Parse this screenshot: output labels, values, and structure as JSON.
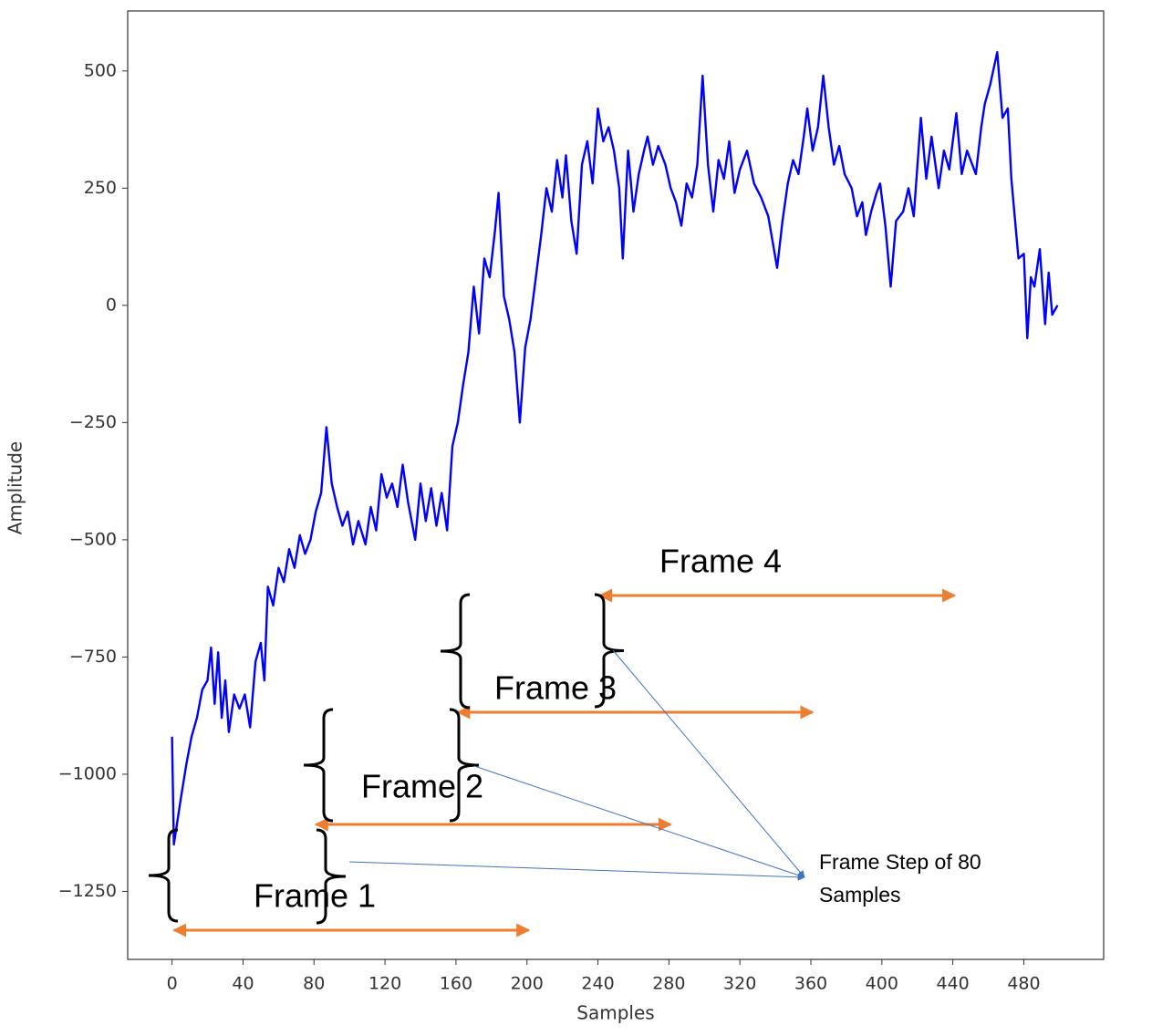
{
  "chart_data": {
    "type": "line",
    "x_label": "Samples",
    "y_label": "Amplitude",
    "x": [
      0,
      1,
      3,
      5,
      8,
      11,
      14,
      17,
      20,
      22,
      24,
      26,
      28,
      30,
      32,
      35,
      38,
      41,
      44,
      47,
      50,
      52,
      54,
      57,
      60,
      63,
      66,
      69,
      72,
      75,
      78,
      81,
      84,
      87,
      90,
      93,
      96,
      99,
      102,
      105,
      109,
      112,
      115,
      118,
      121,
      124,
      127,
      130,
      133,
      137,
      140,
      143,
      146,
      149,
      152,
      155,
      158,
      161,
      164,
      167,
      170,
      173,
      176,
      179,
      182,
      184,
      187,
      190,
      193,
      196,
      199,
      202,
      205,
      208,
      211,
      214,
      217,
      220,
      222,
      225,
      228,
      231,
      234,
      237,
      240,
      243,
      246,
      249,
      252,
      254,
      257,
      260,
      263,
      266,
      268,
      271,
      274,
      278,
      281,
      284,
      287,
      290,
      293,
      296,
      299,
      302,
      305,
      308,
      311,
      314,
      317,
      320,
      324,
      328,
      332,
      336,
      341,
      344,
      347,
      350,
      353,
      356,
      358,
      361,
      364,
      367,
      370,
      373,
      376,
      379,
      383,
      386,
      389,
      391,
      394,
      397,
      399,
      402,
      405,
      408,
      412,
      415,
      418,
      422,
      425,
      428,
      432,
      435,
      438,
      442,
      445,
      448,
      453,
      456,
      458,
      461,
      465,
      468,
      471,
      473,
      477,
      480,
      482,
      484,
      486,
      489,
      492,
      494,
      496,
      499
    ],
    "values": [
      -920,
      -1150,
      -1100,
      -1050,
      -980,
      -920,
      -880,
      -820,
      -800,
      -730,
      -850,
      -740,
      -880,
      -800,
      -910,
      -830,
      -860,
      -830,
      -900,
      -760,
      -720,
      -800,
      -600,
      -640,
      -560,
      -590,
      -520,
      -560,
      -490,
      -530,
      -500,
      -440,
      -400,
      -260,
      -380,
      -430,
      -470,
      -440,
      -510,
      -460,
      -510,
      -430,
      -480,
      -360,
      -410,
      -380,
      -430,
      -340,
      -420,
      -500,
      -380,
      -460,
      -390,
      -470,
      -400,
      -480,
      -300,
      -250,
      -170,
      -100,
      40,
      -60,
      100,
      60,
      160,
      240,
      20,
      -30,
      -100,
      -250,
      -90,
      -30,
      60,
      150,
      250,
      200,
      310,
      230,
      320,
      180,
      110,
      300,
      350,
      260,
      420,
      350,
      380,
      330,
      250,
      100,
      330,
      200,
      280,
      330,
      360,
      300,
      340,
      300,
      250,
      220,
      170,
      260,
      230,
      300,
      490,
      300,
      200,
      310,
      270,
      350,
      240,
      290,
      330,
      260,
      230,
      190,
      80,
      180,
      260,
      310,
      280,
      360,
      420,
      330,
      380,
      490,
      380,
      300,
      340,
      280,
      250,
      190,
      220,
      150,
      200,
      240,
      260,
      170,
      40,
      180,
      200,
      250,
      190,
      400,
      270,
      360,
      250,
      330,
      290,
      410,
      280,
      330,
      280,
      380,
      430,
      470,
      540,
      400,
      420,
      270,
      100,
      110,
      -70,
      60,
      40,
      120,
      -40,
      70,
      -20,
      0
    ],
    "color": "#0000ff",
    "xlim": [
      -25,
      525
    ],
    "ylim": [
      -1395,
      628
    ],
    "xticks": [
      0,
      40,
      80,
      120,
      160,
      200,
      240,
      280,
      320,
      360,
      400,
      440,
      480
    ],
    "yticks": [
      {
        "value": -1250,
        "label": "−1250"
      },
      {
        "value": -1000,
        "label": "−1000"
      },
      {
        "value": -750,
        "label": "−750"
      },
      {
        "value": -500,
        "label": "−500"
      },
      {
        "value": -250,
        "label": "−250"
      },
      0,
      250,
      500
    ],
    "annotations": {
      "frames": [
        {
          "label": "Frame 1",
          "span": [
            0,
            200
          ]
        },
        {
          "label": "Frame 2",
          "span": [
            80,
            280
          ]
        },
        {
          "label": "Frame 3",
          "span": [
            160,
            360
          ]
        },
        {
          "label": "Frame 4",
          "span": [
            240,
            440
          ]
        }
      ],
      "frame_color": "#ed7d31",
      "note": [
        "Frame Step of 80",
        "Samples"
      ],
      "note_color": "#4472c4"
    }
  }
}
